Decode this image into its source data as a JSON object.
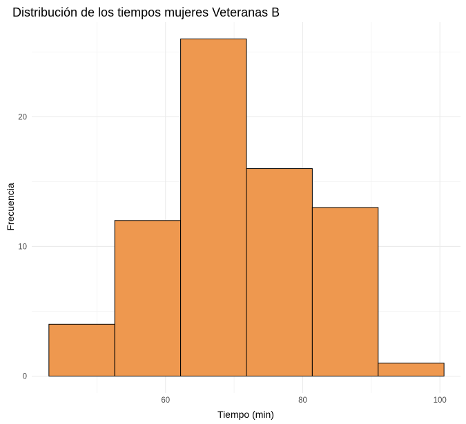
{
  "chart_data": {
    "type": "bar",
    "title": "Distribución de los tiempos mujeres Veteranas B",
    "xlabel": "Tiempo (min)",
    "ylabel": "Frecuencia",
    "bins": [
      {
        "x0": 43.0,
        "x1": 52.6,
        "value": 4
      },
      {
        "x0": 52.6,
        "x1": 62.2,
        "value": 12
      },
      {
        "x0": 62.2,
        "x1": 71.8,
        "value": 26
      },
      {
        "x0": 71.8,
        "x1": 81.4,
        "value": 16
      },
      {
        "x0": 81.4,
        "x1": 91.0,
        "value": 13
      },
      {
        "x0": 91.0,
        "x1": 100.6,
        "value": 1
      }
    ],
    "xlim": [
      40.5,
      103.0
    ],
    "ylim": [
      -1.3,
      27.3
    ],
    "x_ticks": [
      60,
      80,
      100
    ],
    "x_minor_ticks": [
      50,
      70,
      90
    ],
    "y_ticks": [
      0,
      10,
      20
    ],
    "y_minor_ticks": [
      5,
      15,
      25
    ],
    "fill_color": "#EE984F",
    "edge_color": "#000000",
    "grid": true
  }
}
